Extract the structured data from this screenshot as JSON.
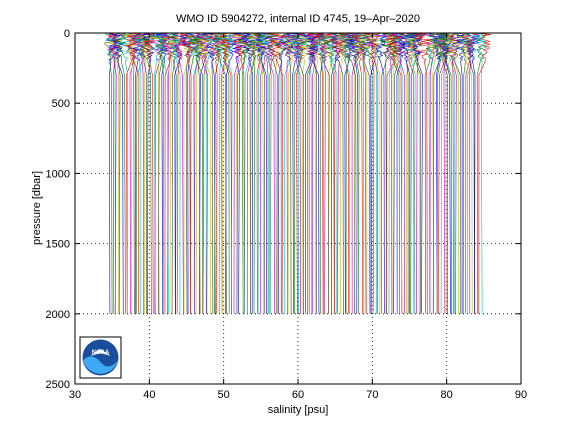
{
  "chart_data": {
    "type": "line",
    "title": "WMO ID 5904272, internal ID 4745, 19–Apr–2020",
    "xlabel": "salinity [psu]",
    "ylabel": "pressure [dbar]",
    "xlim": [
      30,
      90
    ],
    "ylim": [
      0,
      2500
    ],
    "y_reversed": true,
    "grid": true,
    "grid_style": "dotted",
    "xticks": [
      30,
      40,
      50,
      60,
      70,
      80,
      90
    ],
    "yticks": [
      0,
      500,
      1000,
      1500,
      2000,
      2500
    ],
    "xtick_labels": [
      "30",
      "40",
      "50",
      "60",
      "70",
      "80",
      "90"
    ],
    "ytick_labels": [
      "0",
      "500",
      "1000",
      "1500",
      "2000",
      "2500"
    ],
    "series_description": "Salinity profiles each offset by a constant increment in salinity; values near 35 psu at the first profile increasing to about 85 psu at the last; profiles span roughly 0 to 2000 dbar",
    "profile_count": 200,
    "first_profile_offset": 34.6,
    "last_profile_offset": 84.6,
    "max_pressure": 2000,
    "series_colors": [
      "#0000ff",
      "#008000",
      "#ff0000",
      "#00bfbf",
      "#bf00bf",
      "#bfbf00",
      "#404040"
    ],
    "logo": {
      "text": "NOAA",
      "bg_color": "#1a4d9c",
      "accent_color": "#3fa9f5"
    }
  }
}
